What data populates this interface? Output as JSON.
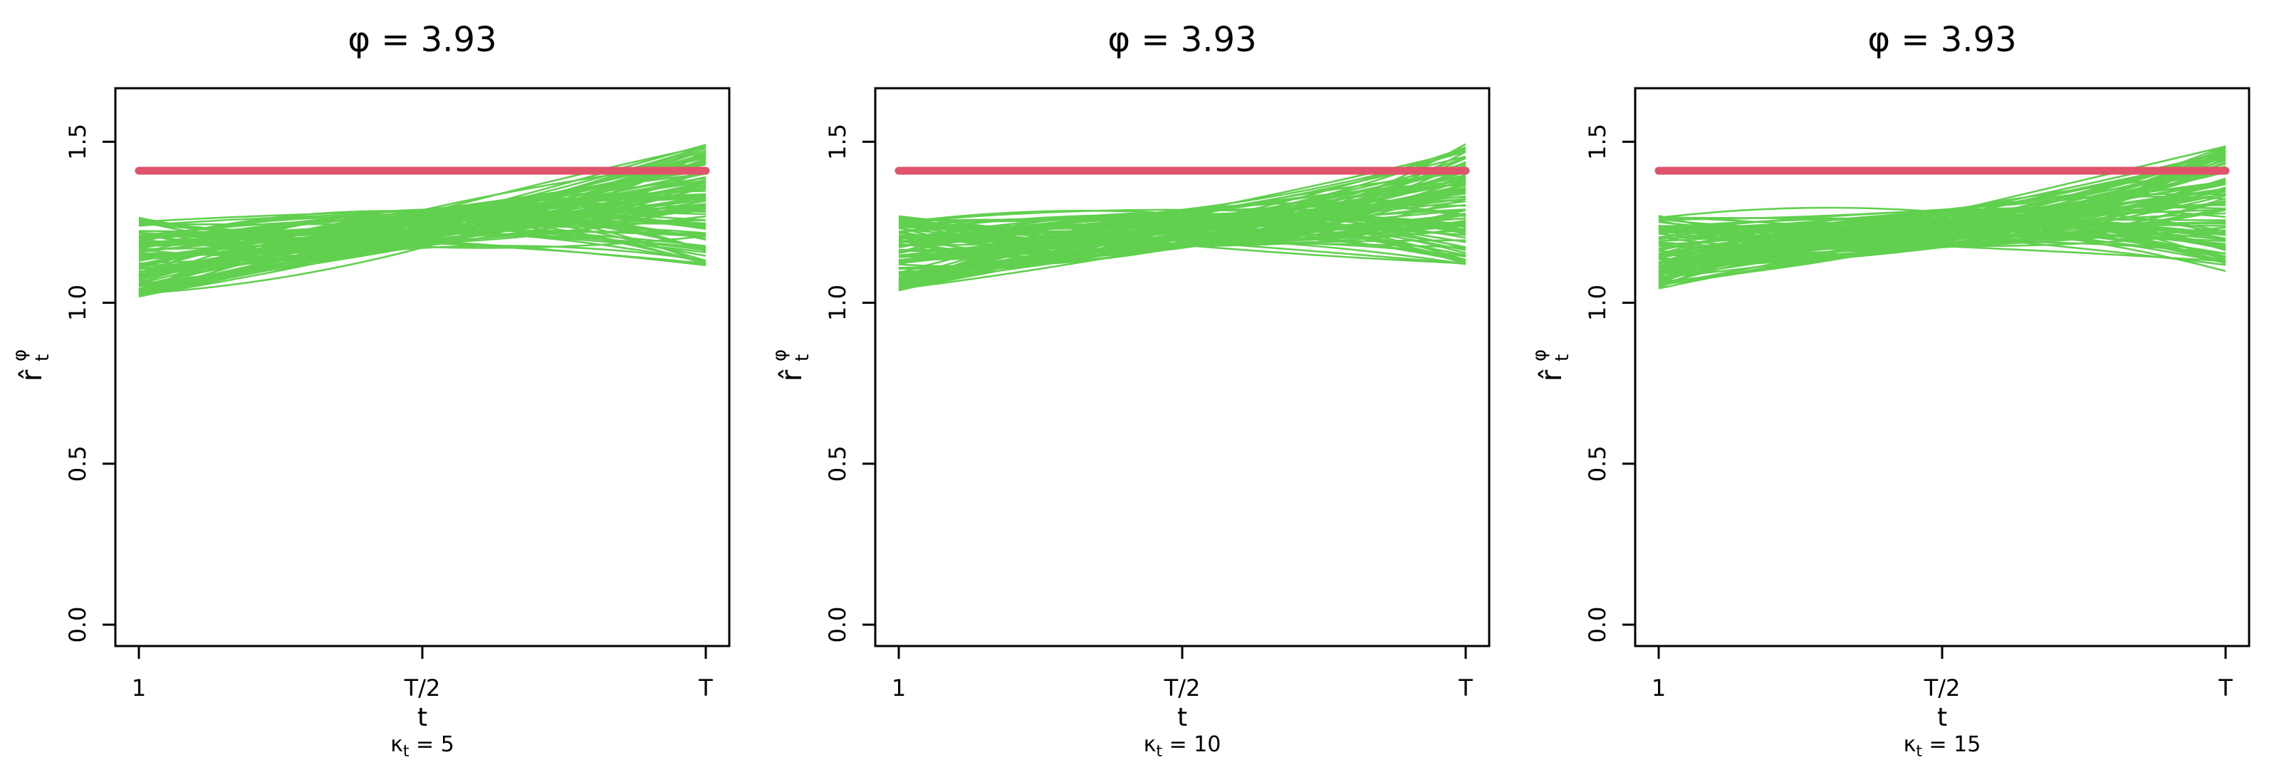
{
  "colors": {
    "sim_lines": "#61D04F",
    "reference_line": "#DF536B",
    "axis": "#000000"
  },
  "ylabel": {
    "main": "r̂",
    "superscript": "φ",
    "subscript": "t"
  },
  "xlabel": "t",
  "chart_data": [
    {
      "type": "line",
      "title": "φ = 3.93",
      "x_categories": [
        "1",
        "T/2",
        "T"
      ],
      "y_ticks": [
        "0.0",
        "0.5",
        "1.0",
        "1.5"
      ],
      "ylim": [
        0.0,
        1.6
      ],
      "subtitle": {
        "symbol": "κ",
        "subscript": "t",
        "rest": " = 5"
      },
      "reference_value": 1.41,
      "sim_start_range": [
        0.96,
        1.32
      ],
      "sim_mid_range": [
        1.13,
        1.33
      ],
      "sim_end_range": [
        1.06,
        1.54
      ],
      "series_count": 100,
      "seed": 11
    },
    {
      "type": "line",
      "title": "φ = 3.93",
      "x_categories": [
        "1",
        "T/2",
        "T"
      ],
      "y_ticks": [
        "0.0",
        "0.5",
        "1.0",
        "1.5"
      ],
      "ylim": [
        0.0,
        1.6
      ],
      "subtitle": {
        "symbol": "κ",
        "subscript": "t",
        "rest": " = 10"
      },
      "reference_value": 1.41,
      "sim_start_range": [
        0.98,
        1.32
      ],
      "sim_mid_range": [
        1.13,
        1.33
      ],
      "sim_end_range": [
        1.07,
        1.54
      ],
      "series_count": 100,
      "seed": 23
    },
    {
      "type": "line",
      "title": "φ = 3.93",
      "x_categories": [
        "1",
        "T/2",
        "T"
      ],
      "y_ticks": [
        "0.0",
        "0.5",
        "1.0",
        "1.5"
      ],
      "ylim": [
        0.0,
        1.6
      ],
      "subtitle": {
        "symbol": "κ",
        "subscript": "t",
        "rest": " = 15"
      },
      "reference_value": 1.41,
      "sim_start_range": [
        0.99,
        1.32
      ],
      "sim_mid_range": [
        1.13,
        1.33
      ],
      "sim_end_range": [
        1.07,
        1.54
      ],
      "series_count": 100,
      "seed": 37
    }
  ]
}
